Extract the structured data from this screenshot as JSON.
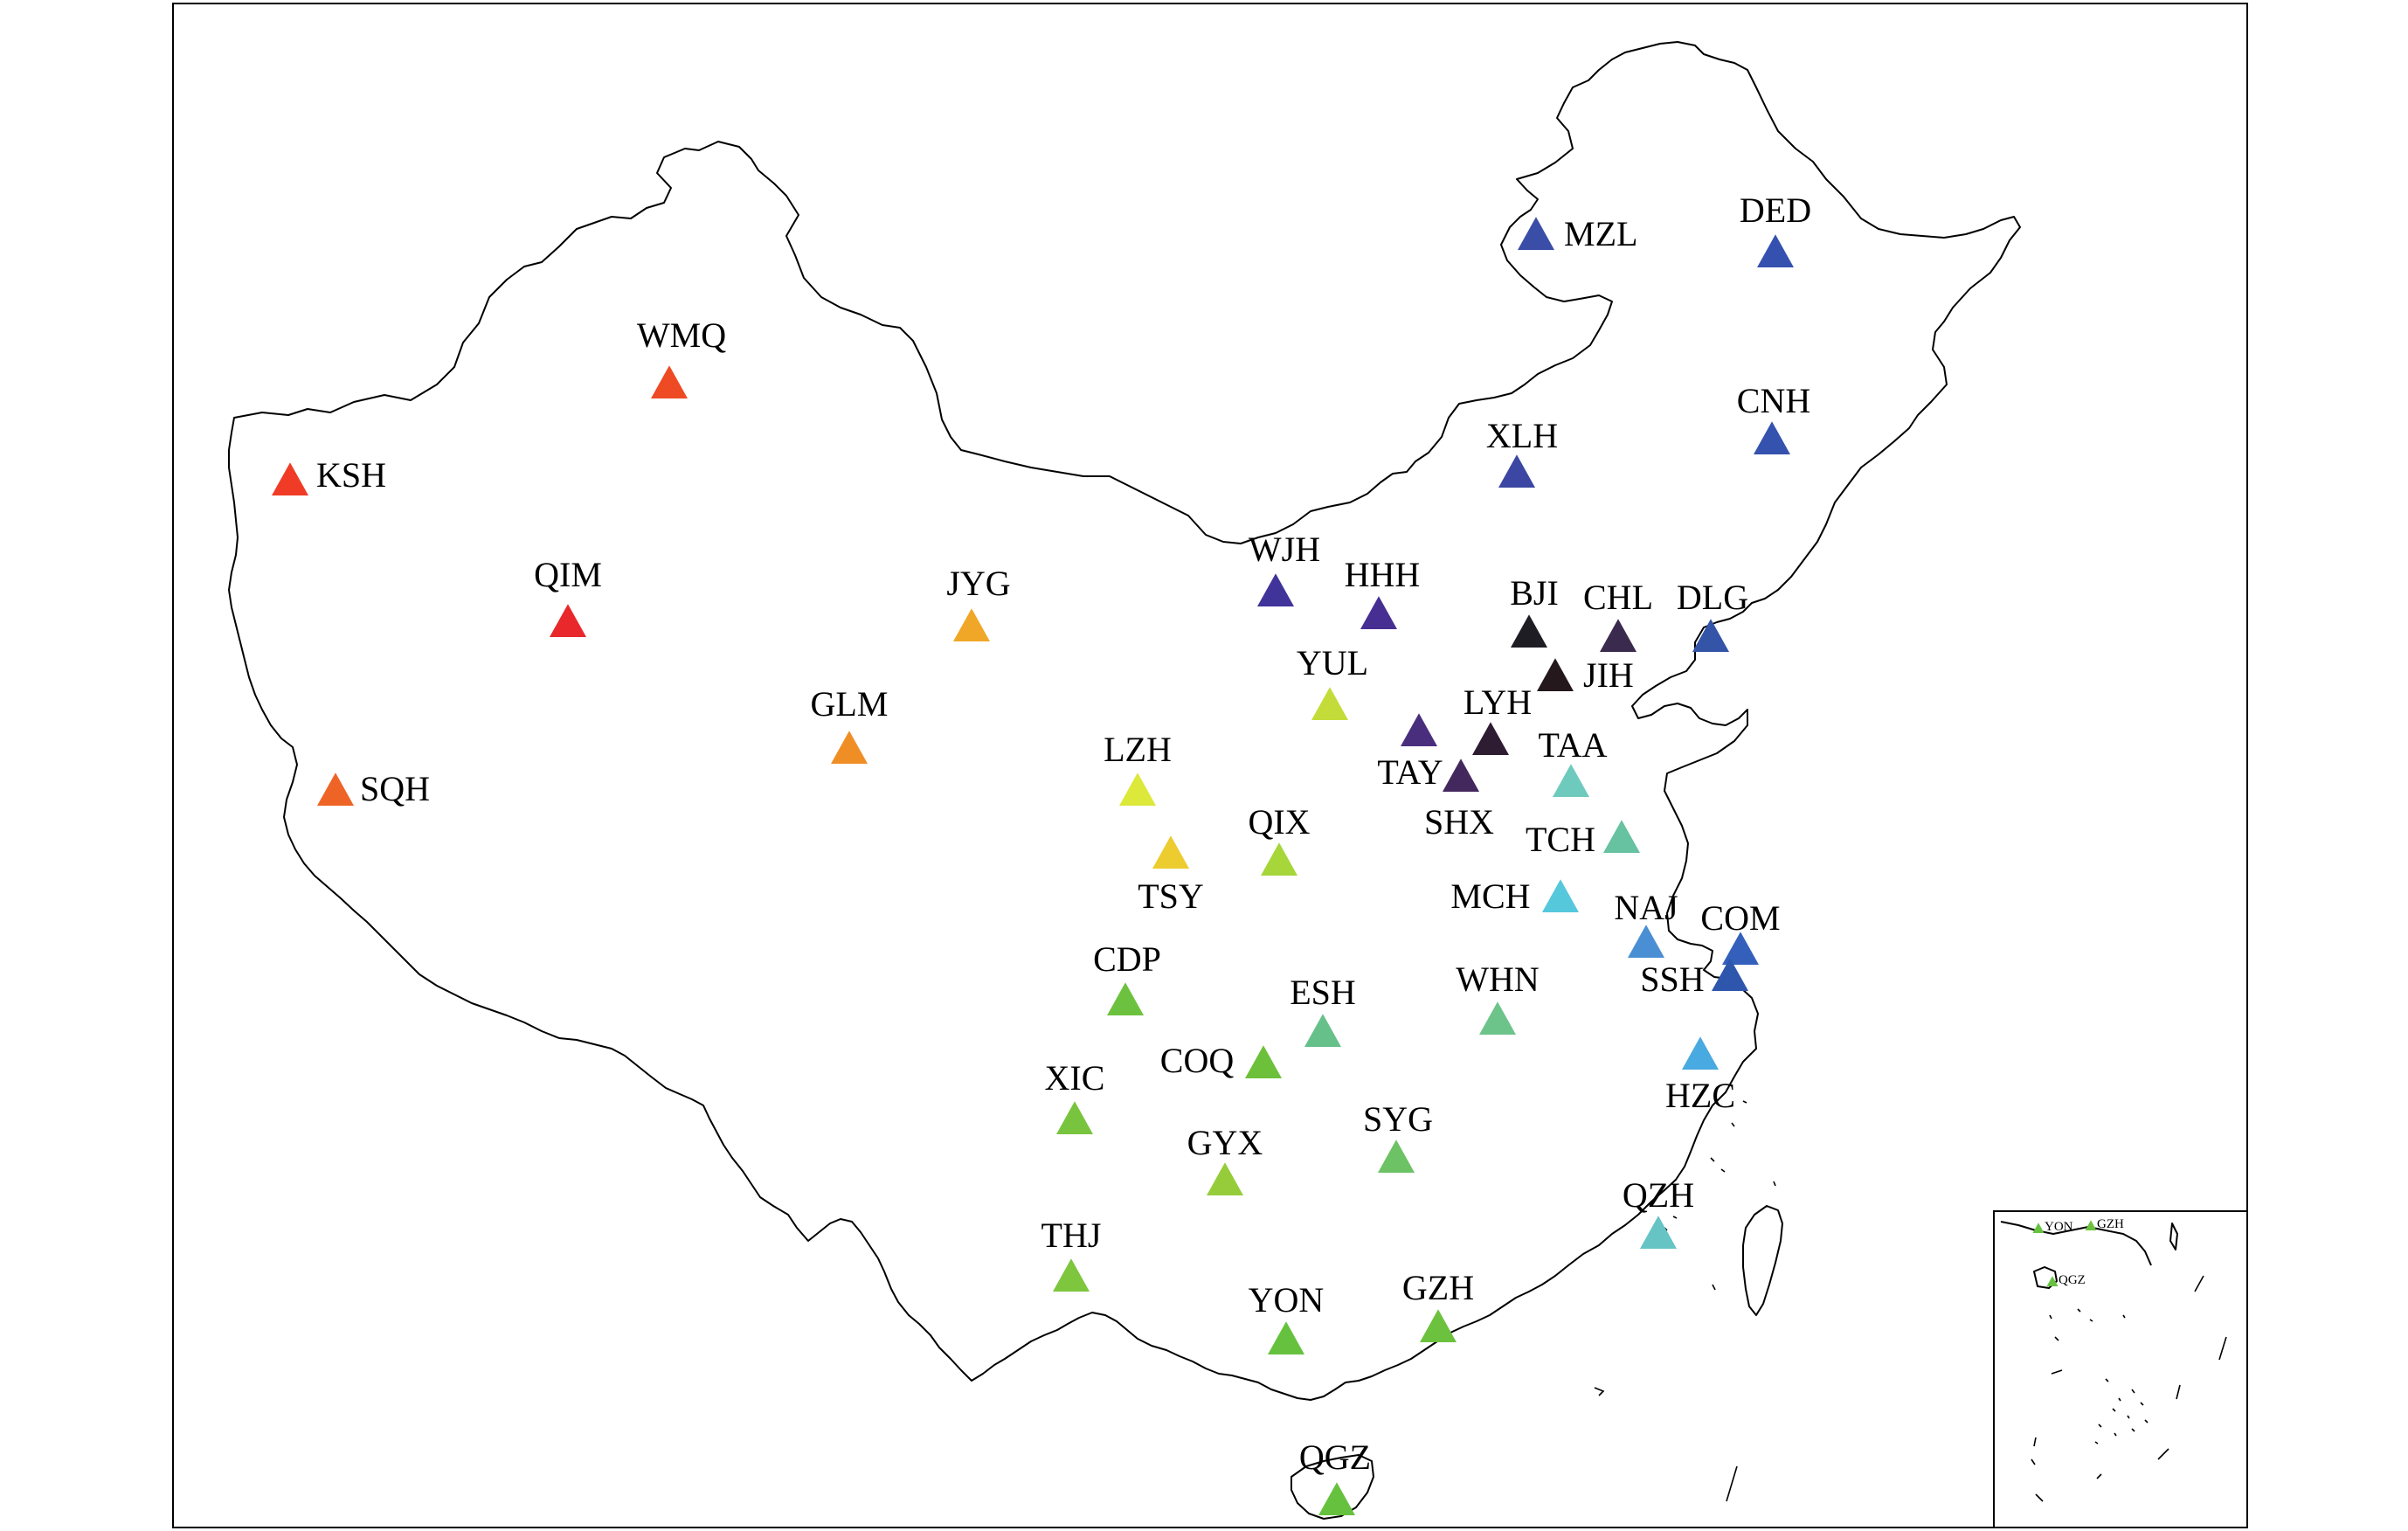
{
  "stations": [
    {
      "code": "MZL",
      "color": "#3a4ea8"
    },
    {
      "code": "DED",
      "color": "#3551b0"
    },
    {
      "code": "WMQ",
      "color": "#ee4a24"
    },
    {
      "code": "KSH",
      "color": "#f03c26"
    },
    {
      "code": "CNH",
      "color": "#3452ae"
    },
    {
      "code": "XLH",
      "color": "#3b47a2"
    },
    {
      "code": "QIM",
      "color": "#e8282a"
    },
    {
      "code": "JYG",
      "color": "#f0a626"
    },
    {
      "code": "WJH",
      "color": "#40339a"
    },
    {
      "code": "HHH",
      "color": "#472e92"
    },
    {
      "code": "BJI",
      "color": "#1f1d24"
    },
    {
      "code": "CHL",
      "color": "#3a2a4e"
    },
    {
      "code": "DLG",
      "color": "#3454a8"
    },
    {
      "code": "JIH",
      "color": "#24181c"
    },
    {
      "code": "YUL",
      "color": "#c4dc3a"
    },
    {
      "code": "GLM",
      "color": "#f08e26"
    },
    {
      "code": "LYH",
      "color": "#2e1c32"
    },
    {
      "code": "TAY",
      "color": "#4a2e7e"
    },
    {
      "code": "SHX",
      "color": "#43285e"
    },
    {
      "code": "TAA",
      "color": "#6ecabc"
    },
    {
      "code": "SQH",
      "color": "#ee6426"
    },
    {
      "code": "LZH",
      "color": "#dce83a"
    },
    {
      "code": "QIX",
      "color": "#a6d63a"
    },
    {
      "code": "TSY",
      "color": "#eccc2e"
    },
    {
      "code": "TCH",
      "color": "#66c2a0"
    },
    {
      "code": "MCH",
      "color": "#56c8dc"
    },
    {
      "code": "NAJ",
      "color": "#4a8ed4"
    },
    {
      "code": "COM",
      "color": "#3460bc"
    },
    {
      "code": "SSH",
      "color": "#2e56ac"
    },
    {
      "code": "CDP",
      "color": "#6cc23e"
    },
    {
      "code": "ESH",
      "color": "#66c08a"
    },
    {
      "code": "WHN",
      "color": "#6cc48a"
    },
    {
      "code": "COQ",
      "color": "#6cc03a"
    },
    {
      "code": "HZC",
      "color": "#48aae0"
    },
    {
      "code": "XIC",
      "color": "#78c43e"
    },
    {
      "code": "SYG",
      "color": "#6cc264"
    },
    {
      "code": "GYX",
      "color": "#96cc3a"
    },
    {
      "code": "QZH",
      "color": "#66c4c4"
    },
    {
      "code": "THJ",
      "color": "#7ec63e"
    },
    {
      "code": "YON",
      "color": "#66c23e"
    },
    {
      "code": "GZH",
      "color": "#6cc23e"
    },
    {
      "code": "QGZ",
      "color": "#66c23e"
    }
  ],
  "inset": {
    "stations": [
      {
        "code": "YON",
        "color": "#66c23e"
      },
      {
        "code": "GZH",
        "color": "#6cc23e"
      },
      {
        "code": "QGZ",
        "color": "#66c23e"
      }
    ]
  }
}
